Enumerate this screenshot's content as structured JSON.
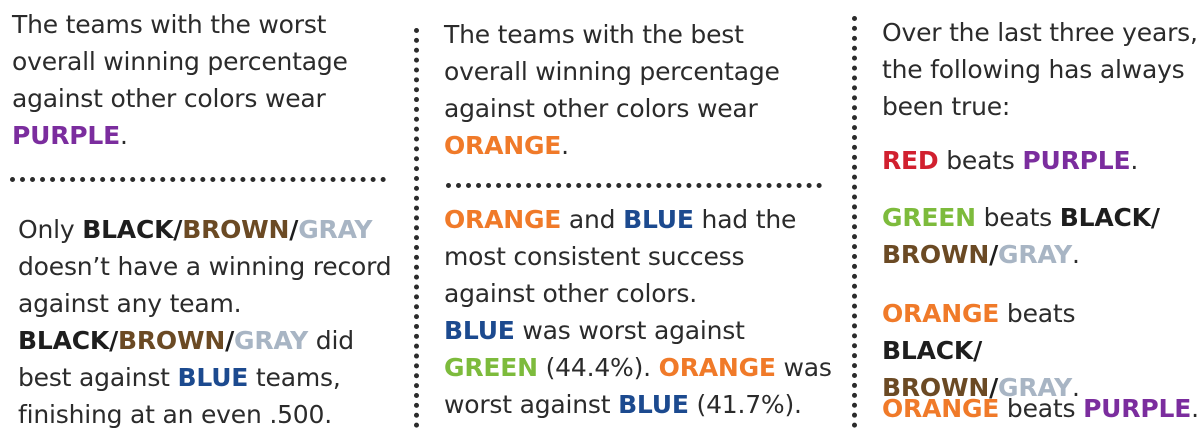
{
  "col1": {
    "top": {
      "text": "The teams with the worst overall winning percentage against other colors wear ",
      "color": "PURPLE",
      "end": "."
    },
    "bottom": {
      "t1": "Only ",
      "black": "BLACK",
      "slash1": "/",
      "brown": "BROWN",
      "slash2": "/",
      "gray": "GRAY",
      "t2": " doesn’t have a winning record against any team.",
      "black2": "BLACK",
      "slash3": "/",
      "brown2": "BROWN",
      "slash4": "/",
      "gray2": "GRAY",
      "t3": " did best against ",
      "blue": "BLUE",
      "t4": " teams, finishing at an even .500."
    }
  },
  "col2": {
    "top": {
      "text": "The teams with the best overall winning percentage against other colors wear ",
      "color": "ORANGE",
      "end": "."
    },
    "bottom": {
      "orange": "ORANGE",
      "t1": " and ",
      "blue": "BLUE",
      "t2": " had the most consistent success against other colors.",
      "blue2": "BLUE",
      "t3": " was worst against ",
      "green": "GREEN",
      "t4": " (44.4%). ",
      "orange2": "ORANGE",
      "t5": " was worst against ",
      "blue3": "BLUE",
      "t6": " (41.7%)."
    }
  },
  "col3": {
    "intro": "Over the last three years, the following has always been true:",
    "facts": [
      {
        "a": "RED",
        "verb": " beats ",
        "b": "PURPLE",
        "end": "."
      },
      {
        "a": "GREEN",
        "verb": " beats ",
        "b1": "BLACK",
        "s1": "/",
        "b2": "BROWN",
        "s2": "/",
        "b3": "GRAY",
        "end": "."
      },
      {
        "a": "ORANGE",
        "verb": " beats ",
        "b1": "BLACK",
        "s1": "/",
        "b2": "BROWN",
        "s2": "/",
        "b3": "GRAY",
        "end": "."
      },
      {
        "a": "ORANGE",
        "verb": " beats ",
        "b": "PURPLE",
        "end": "."
      }
    ]
  },
  "colors": {
    "purple": "#7b2d9e",
    "orange": "#f07a29",
    "blue": "#1c4a8f",
    "black": "#1e1e1e",
    "brown": "#6b4a24",
    "gray": "#a8b5c4",
    "red": "#d1202f",
    "green": "#7dbb3c"
  }
}
